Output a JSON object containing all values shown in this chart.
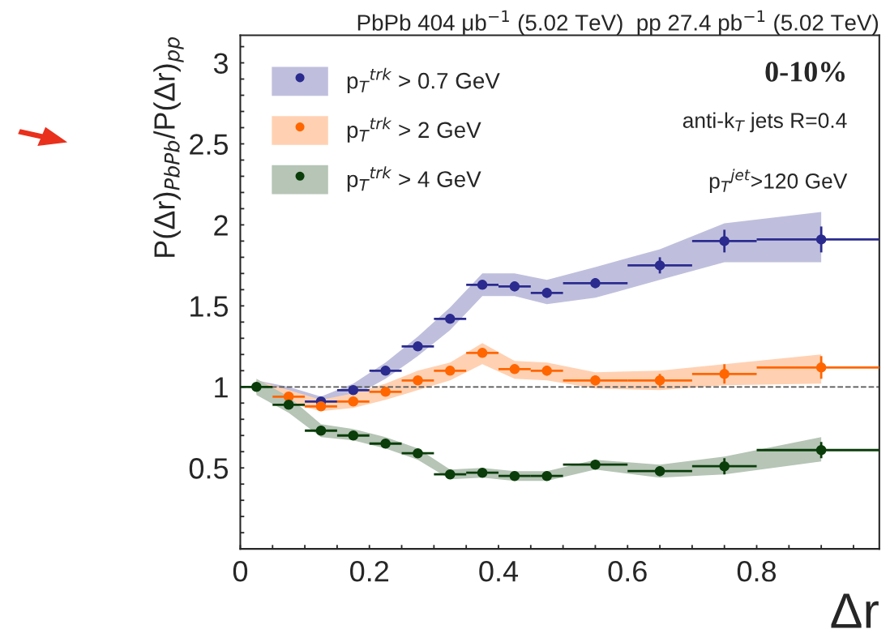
{
  "chart_data": {
    "type": "scatter",
    "title": "PbPb 404 μb$^{−1}$ (5.02 TeV)  pp 27.4 pb$^{−1}$ (5.02 TeV)",
    "xlabel": "Δr",
    "ylabel": "P(Δr)$_{PbPb}$/P(Δr)$_{pp}$",
    "x": [
      0.025,
      0.075,
      0.125,
      0.175,
      0.225,
      0.275,
      0.325,
      0.375,
      0.425,
      0.475,
      0.55,
      0.65,
      0.75,
      0.9
    ],
    "series": [
      {
        "name": "p$_{T}$$^{trk}$ > 0.7 GeV",
        "color": "#2b2b8f",
        "xerrors": [
          null,
          null,
          0.025,
          0.025,
          0.025,
          0.025,
          0.025,
          0.025,
          0.025,
          0.025,
          0.05,
          0.05,
          0.05,
          [
            0.8,
            0.99
          ]
        ],
        "values": [
          null,
          null,
          0.91,
          0.98,
          1.1,
          1.25,
          1.42,
          1.63,
          1.62,
          1.58,
          1.64,
          1.75,
          1.9,
          1.91
        ],
        "errors": [
          null,
          null,
          null,
          null,
          null,
          null,
          null,
          null,
          0.03,
          0.03,
          0.03,
          0.05,
          0.07,
          0.08
        ],
        "lower": [
          0.96,
          0.94,
          0.88,
          0.94,
          1.05,
          1.19,
          1.35,
          1.56,
          1.56,
          1.51,
          1.55,
          1.66,
          1.77,
          1.77
        ],
        "upper": [
          1.04,
          1.0,
          0.94,
          1.02,
          1.15,
          1.31,
          1.49,
          1.7,
          1.7,
          1.66,
          1.74,
          1.85,
          2.01,
          2.08
        ]
      },
      {
        "name": "p$_{T}$$^{trk}$ > 2 GeV",
        "color": "#ff6600",
        "xerrors": [
          null,
          0.025,
          0.025,
          0.025,
          0.025,
          0.025,
          0.025,
          0.025,
          0.025,
          0.025,
          0.05,
          0.05,
          0.05,
          [
            0.8,
            0.99
          ]
        ],
        "values": [
          null,
          0.94,
          0.88,
          0.91,
          0.97,
          1.04,
          1.1,
          1.21,
          1.11,
          1.1,
          1.04,
          1.04,
          1.08,
          1.12
        ],
        "errors": [
          null,
          null,
          null,
          null,
          null,
          null,
          null,
          null,
          0.02,
          0.03,
          0.03,
          0.04,
          0.06,
          0.07
        ],
        "lower": [
          0.96,
          0.9,
          0.85,
          0.87,
          0.92,
          0.98,
          1.04,
          1.14,
          1.05,
          1.04,
          0.99,
          0.98,
          1.01,
          1.02
        ],
        "upper": [
          1.04,
          0.98,
          0.92,
          0.96,
          1.02,
          1.1,
          1.15,
          1.27,
          1.16,
          1.15,
          1.09,
          1.1,
          1.14,
          1.2
        ]
      },
      {
        "name": "p$_{T}$$^{trk}$ > 4 GeV",
        "color": "#0a3d0a",
        "xerrors": [
          0.025,
          0.025,
          0.025,
          0.025,
          0.025,
          0.025,
          0.025,
          0.025,
          0.025,
          0.025,
          0.05,
          0.05,
          0.05,
          [
            0.8,
            0.99
          ]
        ],
        "values": [
          1.0,
          0.89,
          0.73,
          0.7,
          0.65,
          0.59,
          0.46,
          0.47,
          0.45,
          0.45,
          0.52,
          0.48,
          0.51,
          0.61
        ],
        "errors": [
          null,
          null,
          null,
          null,
          null,
          null,
          null,
          null,
          null,
          0.02,
          0.02,
          0.03,
          0.05,
          0.05
        ],
        "lower": [
          0.95,
          0.84,
          0.69,
          0.67,
          0.62,
          0.55,
          0.43,
          0.44,
          0.42,
          0.42,
          0.49,
          0.44,
          0.46,
          0.54
        ],
        "upper": [
          1.05,
          0.94,
          0.77,
          0.74,
          0.69,
          0.62,
          0.49,
          0.5,
          0.48,
          0.48,
          0.55,
          0.52,
          0.57,
          0.69
        ]
      }
    ],
    "xlim": [
      0,
      0.99
    ],
    "xticks": [
      0,
      {
        "value": 0.05,
        "label": null
      },
      {
        "value": 0.1,
        "label": null
      },
      {
        "value": 0.15,
        "label": null
      },
      0.2,
      {
        "value": 0.25,
        "label": null
      },
      {
        "value": 0.3,
        "label": null
      },
      {
        "value": 0.35,
        "label": null
      },
      0.4,
      {
        "value": 0.45,
        "label": null
      },
      {
        "value": 0.5,
        "label": null
      },
      {
        "value": 0.55,
        "label": null
      },
      0.6,
      {
        "value": 0.65,
        "label": null
      },
      {
        "value": 0.7,
        "label": null
      },
      {
        "value": 0.75,
        "label": null
      },
      0.8,
      {
        "value": 0.85,
        "label": null
      },
      {
        "value": 0.9,
        "label": null
      },
      {
        "value": 0.95,
        "label": null
      }
    ],
    "ylim": [
      0,
      3.17
    ],
    "yticks": [
      {
        "value": 0.1,
        "label": null
      },
      {
        "value": 0.2,
        "label": null
      },
      {
        "value": 0.3,
        "label": null
      },
      {
        "value": 0.4,
        "label": null
      },
      0.5,
      {
        "value": 0.6,
        "label": null
      },
      {
        "value": 0.7,
        "label": null
      },
      {
        "value": 0.8,
        "label": null
      },
      {
        "value": 0.9,
        "label": null
      },
      1,
      {
        "value": 1.1,
        "label": null
      },
      {
        "value": 1.2,
        "label": null
      },
      {
        "value": 1.3,
        "label": null
      },
      {
        "value": 1.4,
        "label": null
      },
      1.5,
      {
        "value": 1.6,
        "label": null
      },
      {
        "value": 1.7,
        "label": null
      },
      {
        "value": 1.8,
        "label": null
      },
      {
        "value": 1.9,
        "label": null
      },
      2,
      {
        "value": 2.1,
        "label": null
      },
      {
        "value": 2.2,
        "label": null
      },
      {
        "value": 2.3,
        "label": null
      },
      {
        "value": 2.4,
        "label": null
      },
      2.5,
      {
        "value": 2.6,
        "label": null
      },
      {
        "value": 2.7,
        "label": null
      },
      {
        "value": 2.8,
        "label": null
      },
      {
        "value": 2.9,
        "label": null
      },
      3,
      {
        "value": 3.1,
        "label": null
      }
    ],
    "ref_lines": [
      {
        "axis": "y",
        "value": 1,
        "label": null,
        "color": "#555555",
        "line_style": "dashed"
      }
    ],
    "annotations": [
      "0-10%",
      {
        "text": "anti-k$_{T}$ jets R=0.4"
      },
      {
        "text": "p$_{T}$$^{jet}$>120 GeV"
      }
    ],
    "marker": "circle",
    "legend": "top left",
    "grid": false
  }
}
